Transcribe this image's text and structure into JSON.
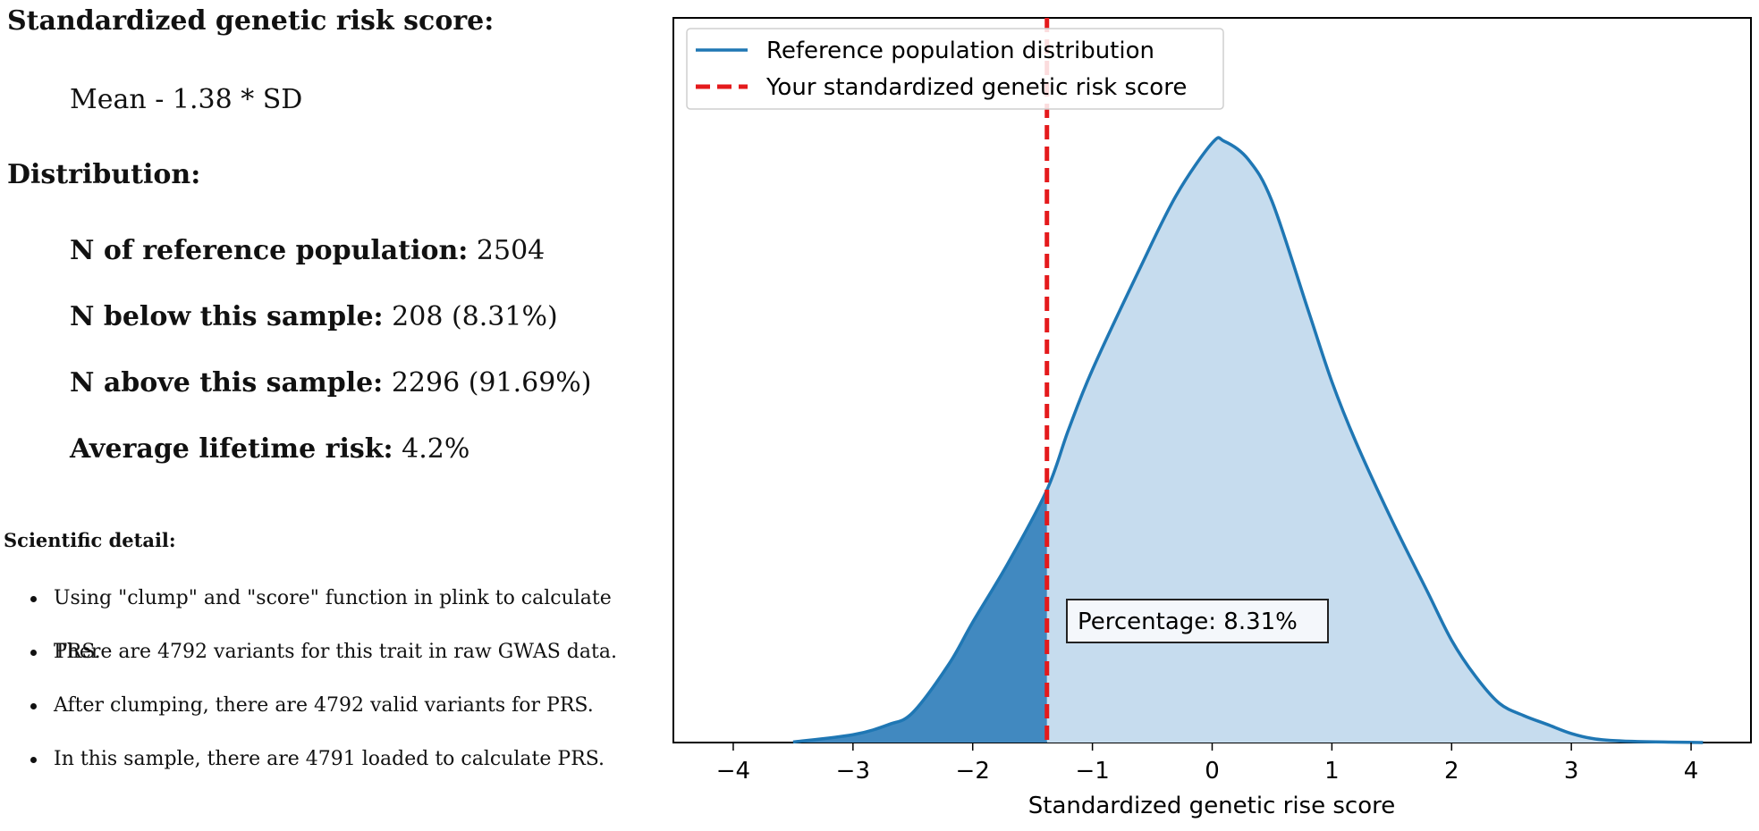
{
  "summary": {
    "score_heading": "Standardized genetic risk score:",
    "score_value": "Mean - 1.38 * SD",
    "distribution_heading": "Distribution:",
    "stats": [
      {
        "label": "N of reference population:",
        "value": "2504"
      },
      {
        "label": "N below this sample:",
        "value": "208 (8.31%)"
      },
      {
        "label": "N above this sample:",
        "value": "2296 (91.69%)"
      },
      {
        "label": "Average lifetime risk:",
        "value": "4.2%"
      }
    ],
    "detail_heading": "Scientific detail:",
    "details": [
      "Using \"clump\" and \"score\" function in plink to calculate PRS.",
      "There are 4792 variants for this trait in raw GWAS data.",
      "After clumping, there are 4792 valid variants for PRS.",
      "In this sample, there are 4791 loaded to calculate PRS."
    ]
  },
  "chart_data": {
    "type": "area",
    "xlabel": "Standardized genetic rise score",
    "ylabel": "",
    "xlim": [
      -4.5,
      4.5
    ],
    "ylim": [
      0,
      1.05
    ],
    "xticks": [
      -4,
      -3,
      -2,
      -1,
      0,
      1,
      2,
      3,
      4
    ],
    "xtick_labels": [
      "−4",
      "−3",
      "−2",
      "−1",
      "0",
      "1",
      "2",
      "3",
      "4"
    ],
    "grid": false,
    "legend_placement": "top-left",
    "series": [
      {
        "name": "Reference population distribution",
        "x": [
          -3.5,
          -3.0,
          -2.7,
          -2.5,
          -2.2,
          -2.0,
          -1.7,
          -1.38,
          -1.2,
          -1.0,
          -0.6,
          -0.3,
          0.0,
          0.1,
          0.3,
          0.5,
          0.8,
          1.0,
          1.2,
          1.5,
          1.8,
          2.0,
          2.2,
          2.4,
          2.6,
          2.8,
          3.0,
          3.2,
          3.5,
          4.1
        ],
        "y": [
          0.001,
          0.013,
          0.03,
          0.05,
          0.13,
          0.2,
          0.3,
          0.42,
          0.52,
          0.62,
          0.79,
          0.91,
          0.997,
          1.0,
          0.97,
          0.9,
          0.72,
          0.6,
          0.5,
          0.37,
          0.25,
          0.17,
          0.11,
          0.065,
          0.045,
          0.03,
          0.015,
          0.006,
          0.002,
          0.0
        ],
        "color": "#1f77b4",
        "fill_color": "#c6dcee"
      }
    ],
    "marker": {
      "name": "Your standardized genetic risk score",
      "x": -1.38,
      "color": "#e41a1c",
      "below_fill_color": "#4189c0"
    },
    "annotation": "Percentage: 8.31%"
  }
}
